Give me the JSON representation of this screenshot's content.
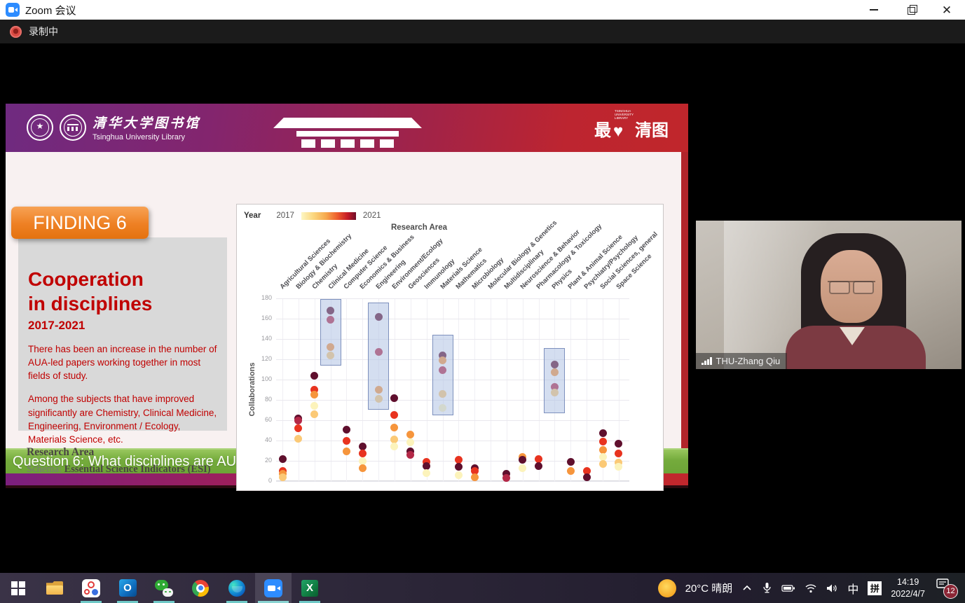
{
  "window": {
    "title": "Zoom 会议",
    "recording_label": "录制中"
  },
  "slide": {
    "header": {
      "org_cn": "清华大学图书馆",
      "org_en": "Tsinghua University Library",
      "brand_left": "最",
      "brand_right": "清图",
      "brand_small": "TSINGHUA UNIVERSITY LIBRARY"
    },
    "finding_badge": "FINDING 6",
    "title_line1": "Cooperation",
    "title_line2": "in disciplines",
    "subtitle": "2017-2021",
    "para1": "There has been an increase in the number of AUA-led papers working together in most fields of study.",
    "para2": "Among the subjects that have improved significantly are Chemistry, Clinical Medicine, Engineering, Environment / Ecology, Materials Science, etc.",
    "footnote_title": "Research Area",
    "footnote_schema_label": "Schema: ",
    "footnote_schema_value": "Essential Science Indicators (ESI)",
    "question": "Question 6: What disciplines are AUA university-led collaborative papers distributed in?"
  },
  "chart_data": {
    "type": "scatter",
    "title": "Research Area",
    "ylabel": "Collaborations",
    "ylim": [
      0,
      180
    ],
    "yticks": [
      0,
      20,
      40,
      60,
      80,
      100,
      120,
      140,
      160,
      180
    ],
    "legend": {
      "label": "Year",
      "min": "2017",
      "max": "2021",
      "position": "top-left"
    },
    "year_colors": [
      "#fcf3bb",
      "#fbc976",
      "#f6953c",
      "#e8331f",
      "#b42847",
      "#5f0f2d"
    ],
    "grid": true,
    "categories": [
      "Agricultural Sciences",
      "Biology & Biochemistry",
      "Chemistry",
      "Clinical Medicine",
      "Computer Science",
      "Economics & Business",
      "Engineering",
      "Environment/Ecology",
      "Geosciences",
      "Immunology",
      "Materials Science",
      "Mathematics",
      "Microbiology",
      "Molecular Biology & Genetics",
      "Multidisciplinary",
      "Neuroscience & Behavior",
      "Pharmacology & Toxicology",
      "Physics",
      "Plant & Animal Science",
      "Psychiatry/Psychology",
      "Social Sciences, general",
      "Space Science"
    ],
    "series": [
      {
        "points": [
          [
            22,
            5
          ],
          [
            10,
            3
          ],
          [
            7,
            2
          ],
          [
            4,
            1
          ]
        ]
      },
      {
        "points": [
          [
            62,
            5
          ],
          [
            60,
            4
          ],
          [
            52,
            3
          ],
          [
            42,
            1
          ]
        ]
      },
      {
        "points": [
          [
            104,
            5
          ],
          [
            90,
            3
          ],
          [
            85,
            2
          ],
          [
            74,
            0
          ],
          [
            66,
            1
          ]
        ]
      },
      {
        "points": [
          [
            168,
            5
          ],
          [
            159,
            4
          ],
          [
            132,
            2
          ],
          [
            124,
            1
          ]
        ]
      },
      {
        "points": [
          [
            51,
            5
          ],
          [
            40,
            3
          ],
          [
            29,
            2
          ]
        ]
      },
      {
        "points": [
          [
            34,
            5
          ],
          [
            27,
            3
          ],
          [
            20,
            0
          ],
          [
            13,
            2
          ]
        ]
      },
      {
        "points": [
          [
            162,
            5
          ],
          [
            127,
            4
          ],
          [
            90,
            2
          ],
          [
            81,
            1
          ]
        ]
      },
      {
        "points": [
          [
            82,
            5
          ],
          [
            65,
            3
          ],
          [
            53,
            2
          ],
          [
            41,
            1
          ],
          [
            34,
            0
          ]
        ]
      },
      {
        "points": [
          [
            46,
            2
          ],
          [
            38,
            0
          ],
          [
            29,
            5
          ],
          [
            26,
            4
          ]
        ]
      },
      {
        "points": [
          [
            19,
            3
          ],
          [
            15,
            5
          ],
          [
            8,
            0
          ]
        ]
      },
      {
        "points": [
          [
            124,
            5
          ],
          [
            119,
            2
          ],
          [
            109,
            4
          ],
          [
            86,
            1
          ],
          [
            72,
            0
          ]
        ]
      },
      {
        "points": [
          [
            21,
            3
          ],
          [
            14,
            5
          ],
          [
            6,
            0
          ]
        ]
      },
      {
        "points": [
          [
            13,
            5
          ],
          [
            10,
            3
          ],
          [
            4,
            2
          ]
        ]
      },
      {
        "points": []
      },
      {
        "points": [
          [
            7,
            5
          ],
          [
            3,
            4
          ]
        ]
      },
      {
        "points": [
          [
            24,
            2
          ],
          [
            21,
            5
          ],
          [
            13,
            0
          ]
        ]
      },
      {
        "points": [
          [
            22,
            3
          ],
          [
            15,
            5
          ]
        ]
      },
      {
        "points": [
          [
            115,
            5
          ],
          [
            107,
            2
          ],
          [
            93,
            4
          ],
          [
            87,
            1
          ]
        ]
      },
      {
        "points": [
          [
            19,
            5
          ],
          [
            10,
            2
          ]
        ]
      },
      {
        "points": [
          [
            10,
            3
          ],
          [
            4,
            5
          ]
        ]
      },
      {
        "points": [
          [
            47,
            5
          ],
          [
            39,
            3
          ],
          [
            31,
            2
          ],
          [
            24,
            0
          ],
          [
            17,
            1
          ]
        ]
      },
      {
        "points": [
          [
            37,
            5
          ],
          [
            27,
            3
          ],
          [
            18,
            1
          ],
          [
            14,
            0
          ]
        ]
      }
    ],
    "highlight_boxes": [
      {
        "category": "Clinical Medicine",
        "from": 114,
        "to": 179
      },
      {
        "category": "Engineering",
        "from": 70,
        "to": 176
      },
      {
        "category": "Materials Science",
        "from": 65,
        "to": 144
      },
      {
        "category": "Physics",
        "from": 67,
        "to": 131
      }
    ]
  },
  "webcam": {
    "name": "THU-Zhang Qiu"
  },
  "taskbar": {
    "apps": [
      "start",
      "file-explorer",
      "meeting-circles-app",
      "outlook",
      "wechat",
      "chrome",
      "edge",
      "zoom",
      "excel"
    ],
    "tray": {
      "temperature": "20°C 晴朗",
      "ime_mode": "中",
      "ime_pinyin": "拼",
      "time": "14:19",
      "date": "2022/4/7",
      "notification_count": "12"
    }
  }
}
